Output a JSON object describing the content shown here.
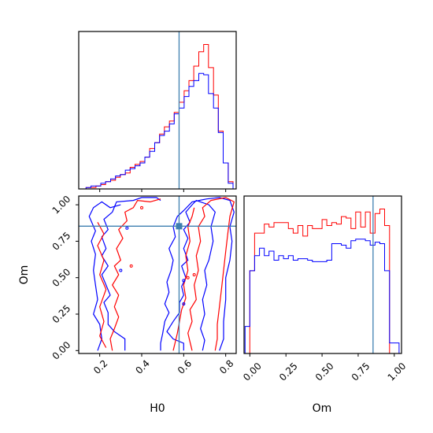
{
  "chart_data": {
    "type": "corner",
    "parameters": [
      "H0",
      "Om"
    ],
    "truth": {
      "H0": 0.578,
      "Om": 0.853
    },
    "colors": {
      "red_series": "#ff0000",
      "blue_series": "#0000ff",
      "truth_line": "#3e7fb0"
    },
    "panels": [
      {
        "id": "hist-H0",
        "type": "histogram",
        "xlim": [
          0.1,
          0.85
        ],
        "bin_edges": [
          0.135,
          0.158,
          0.182,
          0.205,
          0.228,
          0.252,
          0.275,
          0.298,
          0.322,
          0.345,
          0.368,
          0.392,
          0.415,
          0.438,
          0.462,
          0.485,
          0.508,
          0.532,
          0.555,
          0.578,
          0.602,
          0.625,
          0.648,
          0.672,
          0.695,
          0.718,
          0.742,
          0.765,
          0.788,
          0.812,
          0.835
        ],
        "series": [
          {
            "color": "red",
            "counts": [
              1,
              1,
              2,
              3,
              5,
              6,
              8,
              10,
              11,
              15,
              17,
              19,
              22,
              28,
              32,
              38,
              43,
              47,
              53,
              60,
              68,
              75,
              85,
              95,
              100,
              84,
              65,
              40,
              18,
              5
            ]
          },
          {
            "color": "blue",
            "counts": [
              1,
              2,
              2,
              4,
              5,
              7,
              9,
              10,
              13,
              14,
              16,
              18,
              22,
              26,
              32,
              37,
              40,
              45,
              52,
              56,
              64,
              71,
              75,
              80,
              79,
              66,
              56,
              39,
              18,
              4
            ]
          }
        ]
      },
      {
        "id": "contour-H0-Om",
        "type": "contour",
        "xlim": [
          0.1,
          0.85
        ],
        "ylim": [
          -0.02,
          1.06
        ],
        "contours": [
          {
            "color": "blue",
            "points": [
              [
                0.32,
                0.0
              ],
              [
                0.32,
                0.08
              ],
              [
                0.27,
                0.13
              ],
              [
                0.24,
                0.18
              ],
              [
                0.24,
                0.26
              ],
              [
                0.22,
                0.33
              ],
              [
                0.25,
                0.38
              ],
              [
                0.23,
                0.45
              ],
              [
                0.21,
                0.52
              ],
              [
                0.24,
                0.58
              ],
              [
                0.21,
                0.65
              ],
              [
                0.23,
                0.7
              ],
              [
                0.21,
                0.78
              ],
              [
                0.24,
                0.83
              ],
              [
                0.22,
                0.9
              ],
              [
                0.26,
                0.95
              ],
              [
                0.28,
                1.02
              ],
              [
                0.36,
                1.03
              ],
              [
                0.4,
                1.05
              ],
              [
                0.47,
                1.05
              ],
              [
                0.49,
                1.03
              ]
            ]
          },
          {
            "color": "blue",
            "points": [
              [
                0.19,
                0.0
              ],
              [
                0.21,
                0.08
              ],
              [
                0.2,
                0.18
              ],
              [
                0.17,
                0.25
              ],
              [
                0.19,
                0.35
              ],
              [
                0.18,
                0.45
              ],
              [
                0.17,
                0.55
              ],
              [
                0.18,
                0.66
              ],
              [
                0.16,
                0.75
              ],
              [
                0.18,
                0.82
              ],
              [
                0.15,
                0.92
              ],
              [
                0.17,
                0.98
              ],
              [
                0.21,
                1.02
              ],
              [
                0.25,
                0.98
              ],
              [
                0.3,
                1.0
              ]
            ]
          },
          {
            "color": "red",
            "points": [
              [
                0.26,
                0.0
              ],
              [
                0.25,
                0.08
              ],
              [
                0.27,
                0.15
              ],
              [
                0.29,
                0.23
              ],
              [
                0.27,
                0.3
              ],
              [
                0.29,
                0.38
              ],
              [
                0.26,
                0.45
              ],
              [
                0.29,
                0.52
              ],
              [
                0.27,
                0.58
              ],
              [
                0.3,
                0.62
              ],
              [
                0.28,
                0.7
              ],
              [
                0.31,
                0.77
              ],
              [
                0.29,
                0.83
              ],
              [
                0.33,
                0.89
              ],
              [
                0.32,
                0.95
              ],
              [
                0.36,
                0.98
              ],
              [
                0.38,
                1.03
              ],
              [
                0.44,
                1.02
              ],
              [
                0.49,
                1.04
              ]
            ]
          },
          {
            "color": "red",
            "points": [
              [
                0.23,
                0.02
              ],
              [
                0.2,
                0.1
              ],
              [
                0.22,
                0.2
              ],
              [
                0.2,
                0.3
              ],
              [
                0.23,
                0.42
              ],
              [
                0.2,
                0.52
              ],
              [
                0.22,
                0.62
              ],
              [
                0.19,
                0.72
              ],
              [
                0.22,
                0.8
              ],
              [
                0.19,
                0.88
              ]
            ]
          },
          {
            "color": "blue",
            "points": [
              [
                0.6,
                0.0
              ],
              [
                0.6,
                0.05
              ],
              [
                0.55,
                0.08
              ],
              [
                0.52,
                0.13
              ],
              [
                0.55,
                0.2
              ],
              [
                0.58,
                0.26
              ],
              [
                0.58,
                0.33
              ],
              [
                0.6,
                0.38
              ],
              [
                0.59,
                0.44
              ],
              [
                0.61,
                0.5
              ],
              [
                0.59,
                0.58
              ],
              [
                0.62,
                0.62
              ],
              [
                0.6,
                0.7
              ],
              [
                0.62,
                0.77
              ],
              [
                0.6,
                0.83
              ],
              [
                0.63,
                0.88
              ],
              [
                0.61,
                0.95
              ],
              [
                0.64,
                1.0
              ],
              [
                0.66,
                1.03
              ],
              [
                0.72,
                1.0
              ],
              [
                0.75,
                0.95
              ],
              [
                0.73,
                0.85
              ],
              [
                0.74,
                0.75
              ],
              [
                0.72,
                0.62
              ],
              [
                0.7,
                0.55
              ],
              [
                0.71,
                0.45
              ],
              [
                0.69,
                0.35
              ],
              [
                0.7,
                0.25
              ],
              [
                0.68,
                0.15
              ],
              [
                0.7,
                0.07
              ],
              [
                0.69,
                0.0
              ]
            ]
          },
          {
            "color": "blue",
            "points": [
              [
                0.49,
                0.0
              ],
              [
                0.49,
                0.05
              ],
              [
                0.5,
                0.12
              ],
              [
                0.51,
                0.2
              ],
              [
                0.53,
                0.26
              ],
              [
                0.51,
                0.32
              ],
              [
                0.53,
                0.4
              ],
              [
                0.52,
                0.47
              ],
              [
                0.54,
                0.55
              ],
              [
                0.55,
                0.62
              ],
              [
                0.53,
                0.7
              ],
              [
                0.56,
                0.78
              ],
              [
                0.55,
                0.85
              ],
              [
                0.57,
                0.92
              ],
              [
                0.6,
                0.96
              ],
              [
                0.64,
                1.02
              ],
              [
                0.71,
                1.04
              ],
              [
                0.77,
                1.05
              ],
              [
                0.82,
                1.03
              ],
              [
                0.84,
                0.95
              ],
              [
                0.82,
                0.85
              ],
              [
                0.83,
                0.75
              ],
              [
                0.82,
                0.62
              ],
              [
                0.8,
                0.5
              ],
              [
                0.8,
                0.35
              ],
              [
                0.79,
                0.2
              ],
              [
                0.79,
                0.08
              ],
              [
                0.77,
                0.0
              ]
            ]
          },
          {
            "color": "red",
            "points": [
              [
                0.64,
                0.0
              ],
              [
                0.63,
                0.06
              ],
              [
                0.62,
                0.12
              ],
              [
                0.64,
                0.2
              ],
              [
                0.63,
                0.28
              ],
              [
                0.66,
                0.35
              ],
              [
                0.65,
                0.45
              ],
              [
                0.67,
                0.55
              ],
              [
                0.66,
                0.65
              ],
              [
                0.68,
                0.75
              ],
              [
                0.67,
                0.85
              ],
              [
                0.7,
                0.92
              ],
              [
                0.69,
                0.98
              ],
              [
                0.73,
                1.03
              ],
              [
                0.8,
                1.05
              ],
              [
                0.84,
                1.02
              ],
              [
                0.82,
                0.92
              ],
              [
                0.81,
                0.8
              ],
              [
                0.8,
                0.68
              ],
              [
                0.79,
                0.55
              ],
              [
                0.78,
                0.42
              ],
              [
                0.77,
                0.3
              ],
              [
                0.76,
                0.18
              ],
              [
                0.76,
                0.08
              ],
              [
                0.75,
                0.0
              ]
            ]
          },
          {
            "color": "red",
            "points": [
              [
                0.55,
                0.0
              ],
              [
                0.56,
                0.06
              ],
              [
                0.57,
                0.12
              ],
              [
                0.58,
                0.2
              ],
              [
                0.59,
                0.28
              ],
              [
                0.61,
                0.36
              ],
              [
                0.6,
                0.45
              ],
              [
                0.62,
                0.55
              ],
              [
                0.61,
                0.65
              ],
              [
                0.63,
                0.75
              ],
              [
                0.62,
                0.85
              ],
              [
                0.64,
                0.92
              ],
              [
                0.65,
                0.98
              ]
            ]
          }
        ]
      },
      {
        "id": "hist-Om",
        "type": "histogram",
        "xlim": [
          -0.04,
          1.05
        ],
        "bin_edges": [
          -0.033,
          0.0,
          0.033,
          0.067,
          0.1,
          0.133,
          0.167,
          0.2,
          0.233,
          0.267,
          0.3,
          0.333,
          0.367,
          0.4,
          0.433,
          0.467,
          0.5,
          0.533,
          0.567,
          0.6,
          0.633,
          0.667,
          0.7,
          0.733,
          0.767,
          0.8,
          0.833,
          0.867,
          0.9,
          0.933,
          0.967,
          1.0,
          1.033
        ],
        "series": [
          {
            "color": "red",
            "counts": [
              0,
              55,
              80,
              80,
              86,
              84,
              87,
              87,
              87,
              83,
              80,
              85,
              78,
              85,
              83,
              83,
              89,
              85,
              87,
              86,
              91,
              90,
              83,
              94,
              84,
              94,
              80,
              93,
              96,
              85,
              0,
              0
            ]
          },
          {
            "color": "blue",
            "counts": [
              18,
              55,
              65,
              70,
              65,
              68,
              62,
              65,
              63,
              65,
              62,
              63,
              63,
              62,
              61,
              61,
              61,
              62,
              73,
              73,
              72,
              70,
              75,
              76,
              76,
              75,
              72,
              74,
              73,
              55,
              7,
              7
            ]
          }
        ]
      }
    ],
    "xlabel_H0": "H0",
    "ylabel_Om": "Om",
    "xlabel_Om": "Om",
    "ticks_H0": [
      "0.2",
      "0.4",
      "0.6",
      "0.8"
    ],
    "ticks_Om": [
      "0.00",
      "0.25",
      "0.50",
      "0.75",
      "1.00"
    ]
  }
}
